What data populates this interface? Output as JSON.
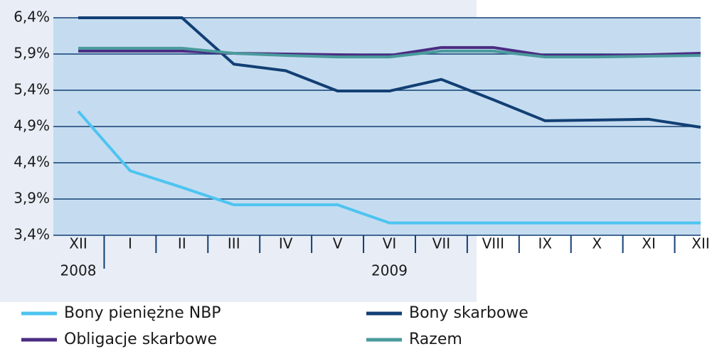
{
  "chart_data": {
    "type": "line",
    "categories": [
      "XII",
      "I",
      "II",
      "III",
      "IV",
      "V",
      "VI",
      "VII",
      "VIII",
      "IX",
      "X",
      "XI",
      "XII"
    ],
    "x_groups": [
      "2008",
      "2009"
    ],
    "series": [
      {
        "name": "Bony pieniężne NBP",
        "color": "#4dc4f0",
        "values": [
          5.11,
          4.29,
          4.06,
          3.82,
          3.82,
          3.82,
          3.57,
          3.57,
          3.57,
          3.57,
          3.57,
          3.57,
          3.57
        ]
      },
      {
        "name": "Bony skarbowe",
        "color": "#123f74",
        "values": [
          6.4,
          6.4,
          6.4,
          5.76,
          5.67,
          5.39,
          5.39,
          5.55,
          5.27,
          4.98,
          4.99,
          5.0,
          4.89
        ]
      },
      {
        "name": "Obligacje skarbowe",
        "color": "#4b2c82",
        "values": [
          5.94,
          5.94,
          5.94,
          5.91,
          5.9,
          5.89,
          5.88,
          5.99,
          5.99,
          5.88,
          5.88,
          5.89,
          5.91
        ]
      },
      {
        "name": "Razem",
        "color": "#4a9a9c",
        "values": [
          5.98,
          5.98,
          5.98,
          5.91,
          5.88,
          5.86,
          5.86,
          5.94,
          5.94,
          5.86,
          5.86,
          5.87,
          5.88
        ]
      }
    ],
    "ylim": [
      3.4,
      6.4
    ],
    "yticks": [
      {
        "value": 3.4,
        "label": "3,4%"
      },
      {
        "value": 3.9,
        "label": "3,9%"
      },
      {
        "value": 4.4,
        "label": "4,4%"
      },
      {
        "value": 4.9,
        "label": "4,9%"
      },
      {
        "value": 5.4,
        "label": "5,4%"
      },
      {
        "value": 5.9,
        "label": "5,9%"
      },
      {
        "value": 6.4,
        "label": "6,4%"
      }
    ],
    "grid": true
  }
}
